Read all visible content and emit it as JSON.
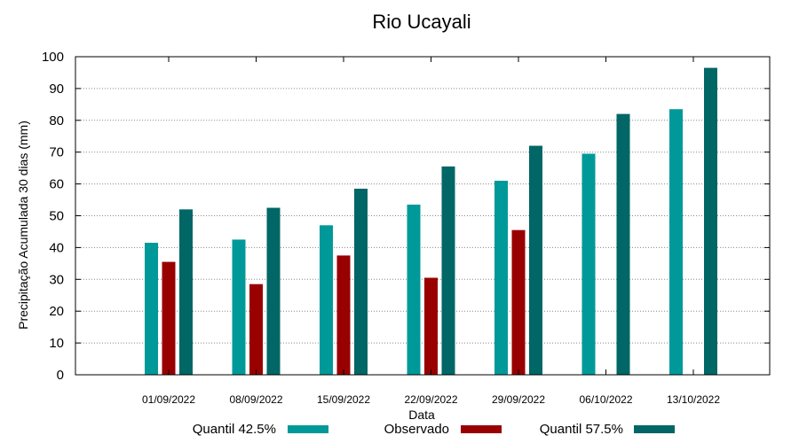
{
  "chart_data": {
    "type": "bar",
    "title": "Rio Ucayali",
    "xlabel": "Data",
    "ylabel": "Precipitação Acumulada 30 dias (mm)",
    "ylim": [
      0,
      100
    ],
    "yticks": [
      0,
      10,
      20,
      30,
      40,
      50,
      60,
      70,
      80,
      90,
      100
    ],
    "grid": true,
    "legend_position": "bottom",
    "categories": [
      "01/09/2022",
      "08/09/2022",
      "15/09/2022",
      "22/09/2022",
      "29/09/2022",
      "06/10/2022",
      "13/10/2022"
    ],
    "series": [
      {
        "name": "Quantil 42.5%",
        "color": "#009999",
        "values": [
          41.5,
          42.5,
          47,
          53.5,
          61,
          69.5,
          83.5
        ]
      },
      {
        "name": "Observado",
        "color": "#990000",
        "values": [
          35.5,
          28.5,
          37.5,
          30.5,
          45.5,
          null,
          null
        ]
      },
      {
        "name": "Quantil 57.5%",
        "color": "#006666",
        "values": [
          52,
          52.5,
          58.5,
          65.5,
          72,
          82,
          96.5
        ]
      }
    ]
  }
}
